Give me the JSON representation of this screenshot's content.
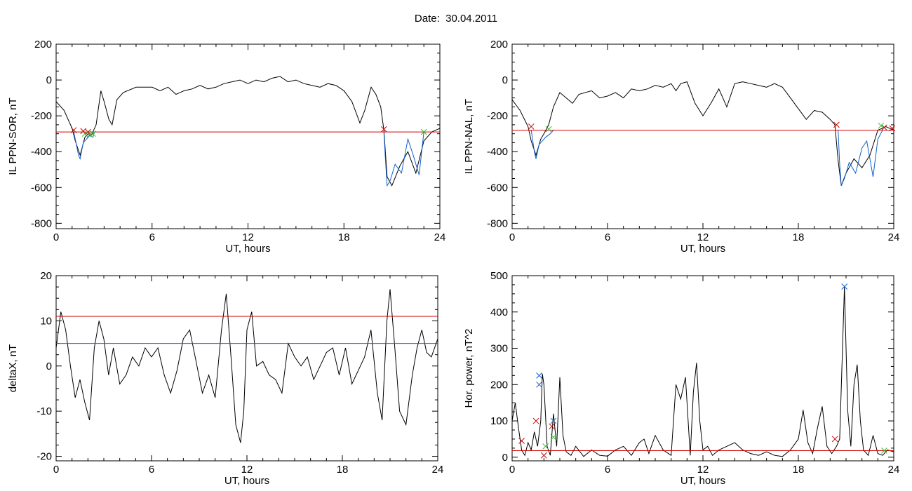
{
  "figure": {
    "title": "Date:  30.04.2011"
  },
  "chart_data": [
    {
      "id": "p1",
      "type": "line",
      "xlabel": "UT, hours",
      "ylabel": "IL PPN-SOR, nT",
      "xlim": [
        0,
        24
      ],
      "ylim": [
        -830,
        200
      ],
      "xticks": [
        0,
        6,
        12,
        18,
        24
      ],
      "yticks": [
        -800,
        -600,
        -400,
        -200,
        0,
        200
      ],
      "threshold": {
        "value": -290,
        "color": "#d00000"
      },
      "series": [
        {
          "color": "#000000",
          "x": [
            0,
            0.5,
            1,
            1.2,
            1.5,
            1.8,
            2,
            2.2,
            2.5,
            2.8,
            3,
            3.3,
            3.5,
            3.8,
            4.2,
            5,
            6,
            6.5,
            7,
            7.5,
            8,
            8.5,
            9,
            9.5,
            10,
            10.5,
            11,
            11.5,
            12,
            12.5,
            13,
            13.5,
            14,
            14.5,
            15,
            15.5,
            16,
            16.5,
            17,
            17.5,
            18,
            18.5,
            19,
            19.3,
            19.7,
            20,
            20.3,
            20.5,
            20.7,
            21,
            21.5,
            22,
            22.5,
            23,
            23.5,
            24
          ],
          "y": [
            -120,
            -170,
            -270,
            -340,
            -420,
            -320,
            -300,
            -310,
            -250,
            -60,
            -120,
            -220,
            -250,
            -110,
            -70,
            -40,
            -40,
            -60,
            -40,
            -80,
            -60,
            -50,
            -30,
            -50,
            -40,
            -20,
            -10,
            0,
            -20,
            0,
            -10,
            10,
            20,
            -10,
            0,
            -20,
            -30,
            -40,
            -20,
            -30,
            -60,
            -120,
            -240,
            -170,
            -40,
            -80,
            -150,
            -280,
            -540,
            -590,
            -480,
            -400,
            -520,
            -340,
            -290,
            -270
          ]
        },
        {
          "color": "#1060d0",
          "x": [
            1.1,
            1.2,
            1.4,
            1.5,
            1.7,
            1.9,
            2.1,
            2.3,
            2.4
          ],
          "y": [
            -290,
            -330,
            -420,
            -440,
            -350,
            -330,
            -310,
            -320,
            -290
          ]
        },
        {
          "color": "#1060d0",
          "x": [
            20.5,
            20.6,
            20.7,
            20.9,
            21.2,
            21.6,
            22,
            22.3,
            22.7,
            23
          ],
          "y": [
            -290,
            -450,
            -590,
            -560,
            -470,
            -520,
            -330,
            -410,
            -530,
            -290
          ]
        }
      ],
      "markers": [
        {
          "x": 1.1,
          "y": -280,
          "color": "#d00000"
        },
        {
          "x": 1.7,
          "y": -285,
          "color": "#d00000"
        },
        {
          "x": 2.0,
          "y": -290,
          "color": "#d00000"
        },
        {
          "x": 1.8,
          "y": -300,
          "color": "#30c030"
        },
        {
          "x": 2.1,
          "y": -305,
          "color": "#30c030"
        },
        {
          "x": 2.3,
          "y": -300,
          "color": "#30c030"
        },
        {
          "x": 20.5,
          "y": -275,
          "color": "#d00000"
        },
        {
          "x": 23.0,
          "y": -290,
          "color": "#30c030"
        }
      ]
    },
    {
      "id": "p2",
      "type": "line",
      "xlabel": "UT, hours",
      "ylabel": "IL PPN-NAL, nT",
      "xlim": [
        0,
        24
      ],
      "ylim": [
        -830,
        200
      ],
      "xticks": [
        0,
        6,
        12,
        18,
        24
      ],
      "yticks": [
        -800,
        -600,
        -400,
        -200,
        0,
        200
      ],
      "threshold": {
        "value": -280,
        "color": "#d00000"
      },
      "series": [
        {
          "color": "#000000",
          "x": [
            0,
            0.5,
            1,
            1.2,
            1.5,
            1.8,
            2,
            2.3,
            2.6,
            3,
            3.4,
            3.8,
            4.2,
            5,
            5.5,
            6,
            6.5,
            7,
            7.5,
            8,
            8.5,
            9,
            9.5,
            10,
            10.3,
            10.6,
            11,
            11.5,
            12,
            12.5,
            13,
            13.5,
            14,
            14.5,
            15,
            15.5,
            16,
            16.5,
            17,
            17.5,
            18,
            18.5,
            19,
            19.5,
            20,
            20.3,
            20.5,
            20.7,
            21,
            21.5,
            22,
            22.5,
            23,
            23.5,
            24
          ],
          "y": [
            -110,
            -170,
            -260,
            -340,
            -420,
            -330,
            -300,
            -250,
            -150,
            -70,
            -100,
            -130,
            -80,
            -60,
            -100,
            -90,
            -70,
            -100,
            -50,
            -60,
            -50,
            -30,
            -40,
            -20,
            -60,
            -20,
            -10,
            -130,
            -200,
            -130,
            -50,
            -150,
            -20,
            -10,
            -20,
            -30,
            -40,
            -20,
            -40,
            -100,
            -160,
            -220,
            -170,
            -180,
            -220,
            -250,
            -450,
            -590,
            -520,
            -440,
            -490,
            -420,
            -280,
            -260,
            -280
          ]
        },
        {
          "color": "#1060d0",
          "x": [
            1.2,
            1.4,
            1.5,
            1.7,
            1.9,
            2.1,
            2.4,
            2.6
          ],
          "y": [
            -280,
            -400,
            -440,
            -360,
            -340,
            -320,
            -300,
            -280
          ]
        },
        {
          "color": "#1060d0",
          "x": [
            20.5,
            20.6,
            20.7,
            20.9,
            21.2,
            21.6,
            22,
            22.3,
            22.7,
            23,
            23.3
          ],
          "y": [
            -280,
            -470,
            -590,
            -550,
            -460,
            -520,
            -380,
            -340,
            -540,
            -330,
            -280
          ]
        }
      ],
      "markers": [
        {
          "x": 1.2,
          "y": -260,
          "color": "#d00000"
        },
        {
          "x": 2.3,
          "y": -275,
          "color": "#30c030"
        },
        {
          "x": 20.4,
          "y": -250,
          "color": "#d00000"
        },
        {
          "x": 23.4,
          "y": -265,
          "color": "#d00000"
        },
        {
          "x": 23.2,
          "y": -255,
          "color": "#30c030"
        },
        {
          "x": 23.9,
          "y": -270,
          "color": "#d00000"
        }
      ]
    },
    {
      "id": "p3",
      "type": "line",
      "xlabel": "UT, hours",
      "ylabel": "deltaX, nT",
      "xlim": [
        0,
        24
      ],
      "ylim": [
        -21,
        20
      ],
      "xticks": [
        0,
        6,
        12,
        18,
        24
      ],
      "yticks": [
        -20,
        -10,
        0,
        10,
        20
      ],
      "threshold": {
        "value": 11,
        "color": "#d00000"
      },
      "threshold2": {
        "value": 5,
        "color": "#1060d0"
      },
      "series": [
        {
          "color": "#000000",
          "x": [
            0,
            0.3,
            0.6,
            0.9,
            1.2,
            1.5,
            1.8,
            2.1,
            2.4,
            2.7,
            3,
            3.3,
            3.6,
            4,
            4.4,
            4.8,
            5.2,
            5.6,
            6,
            6.4,
            6.8,
            7.2,
            7.6,
            8,
            8.4,
            8.8,
            9.2,
            9.6,
            10,
            10.4,
            10.7,
            11,
            11.3,
            11.6,
            11.8,
            12,
            12.3,
            12.6,
            13,
            13.4,
            13.8,
            14.2,
            14.6,
            15,
            15.4,
            15.8,
            16.2,
            16.6,
            17,
            17.4,
            17.8,
            18.2,
            18.6,
            19,
            19.4,
            19.8,
            20.2,
            20.5,
            20.8,
            21,
            21.3,
            21.6,
            22,
            22.4,
            22.7,
            23,
            23.3,
            23.6,
            24
          ],
          "y": [
            4,
            12,
            8,
            0,
            -7,
            -3,
            -8,
            -12,
            4,
            10,
            6,
            -2,
            4,
            -4,
            -2,
            2,
            0,
            4,
            2,
            4,
            -2,
            -6,
            -1,
            6,
            8,
            1,
            -6,
            -2,
            -7,
            8,
            16,
            2,
            -13,
            -17,
            -10,
            8,
            12,
            0,
            1,
            -2,
            -3,
            -6,
            5,
            2,
            0,
            2,
            -3,
            0,
            3,
            4,
            -2,
            4,
            -4,
            -1,
            2,
            8,
            -6,
            -12,
            10,
            17,
            4,
            -10,
            -13,
            -2,
            4,
            8,
            3,
            2,
            6
          ]
        }
      ],
      "markers": []
    },
    {
      "id": "p4",
      "type": "line",
      "xlabel": "UT, hours",
      "ylabel": "Hor. power, nT^2",
      "xlim": [
        0,
        24
      ],
      "ylim": [
        -10,
        500
      ],
      "xticks": [
        0,
        6,
        12,
        18,
        24
      ],
      "yticks": [
        0,
        100,
        200,
        300,
        400,
        500
      ],
      "threshold": {
        "value": 18,
        "color": "#d00000"
      },
      "series": [
        {
          "color": "#000000",
          "x": [
            0,
            0.2,
            0.4,
            0.6,
            0.8,
            1,
            1.2,
            1.4,
            1.6,
            1.8,
            1.9,
            2,
            2.2,
            2.4,
            2.6,
            2.8,
            3,
            3.2,
            3.4,
            3.7,
            4,
            4.5,
            5,
            5.5,
            6,
            6.5,
            7,
            7.5,
            8,
            8.3,
            8.6,
            9,
            9.5,
            10,
            10.3,
            10.6,
            10.9,
            11.2,
            11.4,
            11.6,
            11.8,
            12,
            12.3,
            12.6,
            13,
            13.5,
            14,
            14.5,
            15,
            15.5,
            16,
            16.5,
            17,
            17.5,
            18,
            18.3,
            18.6,
            18.9,
            19.2,
            19.5,
            19.8,
            20.1,
            20.4,
            20.6,
            20.9,
            21.1,
            21.3,
            21.5,
            21.7,
            21.9,
            22.1,
            22.4,
            22.7,
            23,
            23.3,
            23.6,
            24
          ],
          "y": [
            100,
            150,
            80,
            20,
            5,
            40,
            20,
            70,
            30,
            100,
            230,
            200,
            30,
            5,
            120,
            30,
            220,
            60,
            15,
            5,
            30,
            2,
            20,
            5,
            3,
            20,
            30,
            5,
            40,
            50,
            10,
            60,
            20,
            5,
            200,
            160,
            220,
            5,
            180,
            260,
            100,
            20,
            30,
            5,
            20,
            30,
            40,
            20,
            10,
            5,
            15,
            5,
            2,
            20,
            50,
            130,
            40,
            10,
            80,
            140,
            30,
            10,
            30,
            50,
            470,
            130,
            30,
            200,
            255,
            100,
            20,
            5,
            60,
            10,
            5,
            20,
            15
          ]
        }
      ],
      "markers": [
        {
          "x": 1.7,
          "y": 225,
          "color": "#1060d0"
        },
        {
          "x": 1.7,
          "y": 200,
          "color": "#1060d0"
        },
        {
          "x": 2.6,
          "y": 100,
          "color": "#1060d0"
        },
        {
          "x": 20.9,
          "y": 470,
          "color": "#1060d0"
        },
        {
          "x": 0.6,
          "y": 45,
          "color": "#d00000"
        },
        {
          "x": 1.5,
          "y": 100,
          "color": "#d00000"
        },
        {
          "x": 2.0,
          "y": 5,
          "color": "#d00000"
        },
        {
          "x": 2.5,
          "y": 85,
          "color": "#d00000"
        },
        {
          "x": 20.3,
          "y": 50,
          "color": "#d00000"
        },
        {
          "x": 23.4,
          "y": 18,
          "color": "#30c030"
        },
        {
          "x": 2.1,
          "y": 30,
          "color": "#30c030"
        },
        {
          "x": 2.6,
          "y": 55,
          "color": "#30c030"
        }
      ]
    }
  ]
}
